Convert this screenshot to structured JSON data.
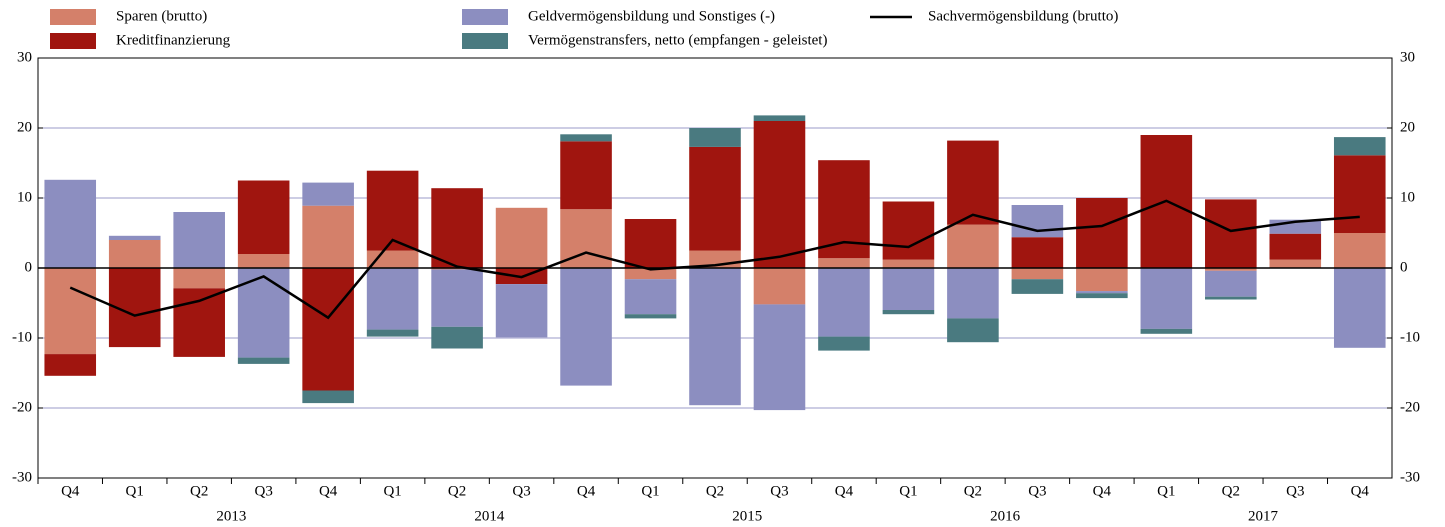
{
  "chart_data": {
    "type": "bar",
    "categories": [
      "Q4",
      "Q1",
      "Q2",
      "Q3",
      "Q4",
      "Q1",
      "Q2",
      "Q3",
      "Q4",
      "Q1",
      "Q2",
      "Q3",
      "Q4",
      "Q1",
      "Q2",
      "Q3",
      "Q4",
      "Q1",
      "Q2",
      "Q3",
      "Q4"
    ],
    "years": [
      "2013",
      "2014",
      "2015",
      "2016",
      "2017"
    ],
    "stacked": true,
    "series": [
      {
        "name": "Sparen (brutto)",
        "color": "#d4806a",
        "values": [
          -12.3,
          4.0,
          -2.9,
          2.0,
          8.9,
          2.5,
          -0.2,
          8.6,
          8.4,
          -1.6,
          2.5,
          -5.2,
          1.4,
          1.2,
          6.2,
          -1.6,
          -3.3,
          0,
          -0.4,
          1.2,
          5.0
        ]
      },
      {
        "name": "Kreditfinanzierung",
        "color": "#a0150f",
        "values": [
          -3.1,
          -11.3,
          -9.8,
          10.5,
          -17.5,
          11.4,
          11.4,
          -2.3,
          9.7,
          7.0,
          14.8,
          21.0,
          14.0,
          8.3,
          12.0,
          4.4,
          10.0,
          19.0,
          9.8,
          3.7,
          11.1
        ]
      },
      {
        "name": "Geldvermögensbildung und Sonstiges (-)",
        "color": "#8c8ec0",
        "values": [
          12.6,
          0.6,
          8.0,
          -12.8,
          3.3,
          -8.8,
          -8.2,
          -7.6,
          -16.8,
          -5.0,
          -19.6,
          -15.1,
          -9.8,
          -6.0,
          -7.2,
          4.6,
          -0.3,
          -8.7,
          -3.7,
          2.0,
          -11.4
        ]
      },
      {
        "name": "Vermögenstransfers, netto (empfangen - geleistet)",
        "color": "#4a7a80",
        "values": [
          0,
          0,
          0,
          -0.9,
          -1.8,
          -1.0,
          -3.1,
          0,
          1.0,
          -0.6,
          2.7,
          0.8,
          -2.0,
          -0.6,
          -3.4,
          -2.1,
          -0.7,
          -0.7,
          -0.4,
          0,
          2.6
        ]
      },
      {
        "name": "Sachvermögensbildung (brutto)",
        "color": "#000000",
        "type": "line",
        "values": [
          -2.8,
          -6.8,
          -4.7,
          -1.2,
          -7.1,
          4.0,
          0.2,
          -1.3,
          2.2,
          -0.2,
          0.4,
          1.6,
          3.7,
          3.0,
          7.6,
          5.3,
          6.0,
          9.6,
          5.3,
          6.6,
          7.3
        ]
      }
    ],
    "ylim": [
      -30,
      30
    ],
    "yticks": [
      -30,
      -20,
      -10,
      0,
      10,
      20,
      30
    ],
    "y2lim": [
      -30,
      30
    ],
    "y2ticks": [
      -30,
      -20,
      -10,
      0,
      10,
      20,
      30
    ],
    "grid": true
  }
}
